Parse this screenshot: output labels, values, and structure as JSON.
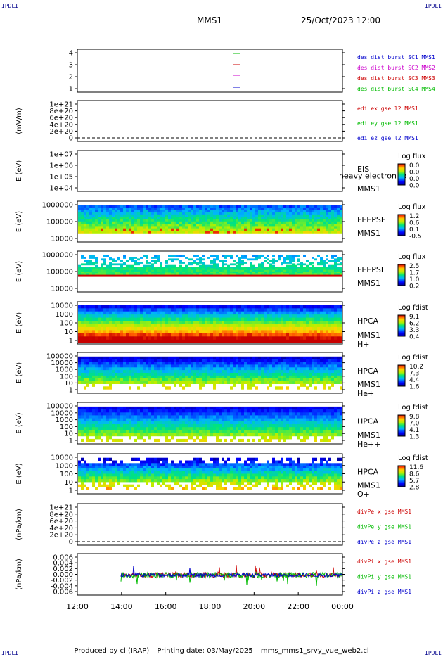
{
  "corner_label": "IPDLI",
  "header": {
    "mission": "MMS1",
    "date": "25/Oct/2023 12:00"
  },
  "footer": {
    "produced": "Produced by cl (IRAP)",
    "printing": "Printing date: 03/May/2025",
    "file": "mms_mms1_srvy_vue_web2.cl"
  },
  "x_ticks": [
    "12:00",
    "14:00",
    "16:00",
    "18:00",
    "20:00",
    "22:00",
    "00:00"
  ],
  "chart_data": [
    {
      "type": "line",
      "ylabel": "",
      "yticks": [
        "4",
        "3",
        "2",
        "1"
      ],
      "legend": [
        {
          "label": "des dist burst SC1 MMS1",
          "color": "#0000cc"
        },
        {
          "label": "des dist burst SC2 MMS2",
          "color": "#cc00cc"
        },
        {
          "label": "des dist burst SC3 MMS3",
          "color": "#cc0000"
        },
        {
          "label": "des dist burst SC4 MMS4",
          "color": "#00bb00"
        }
      ]
    },
    {
      "type": "line",
      "ylabel": "(mV/m)",
      "yticks": [
        "1e+21",
        "8e+20",
        "6e+20",
        "4e+20",
        "2e+20",
        "0"
      ],
      "legend": [
        {
          "label": "edi ex gse l2 MMS1",
          "color": "#cc0000"
        },
        {
          "label": "edi ey gse l2 MMS1",
          "color": "#00bb00"
        },
        {
          "label": "edi ez gse l2 MMS1",
          "color": "#0000cc"
        }
      ]
    },
    {
      "type": "heatmap",
      "ylabel": "E (eV)",
      "yticks": [
        "1e+07",
        "1e+06",
        "1e+05",
        "1e+04"
      ],
      "labels": [
        "EIS",
        "heavy electron to",
        "MMS1"
      ],
      "colorbar": {
        "title": "Log flux",
        "ticks": [
          "0.0",
          "0.0",
          "0.0",
          "0.0"
        ]
      }
    },
    {
      "type": "heatmap",
      "ylabel": "E (eV)",
      "yticks": [
        "1000000",
        "100000",
        "10000"
      ],
      "labels": [
        "FEEPSE",
        "MMS1"
      ],
      "colorbar": {
        "title": "Log flux",
        "ticks": [
          "1.2",
          "0.6",
          "0.1",
          "-0.5"
        ]
      }
    },
    {
      "type": "heatmap",
      "ylabel": "E (eV)",
      "yticks": [
        "1000000",
        "100000",
        "10000"
      ],
      "labels": [
        "FEEPSI",
        "MMS1"
      ],
      "colorbar": {
        "title": "Log flux",
        "ticks": [
          "2.5",
          "1.7",
          "1.0",
          "0.2"
        ]
      }
    },
    {
      "type": "heatmap",
      "ylabel": "E (eV)",
      "yticks": [
        "10000",
        "1000",
        "100",
        "10",
        "1"
      ],
      "labels": [
        "HPCA",
        "MMS1",
        "H+"
      ],
      "colorbar": {
        "title": "Log fdist",
        "ticks": [
          "9.1",
          "6.2",
          "3.3",
          "0.4"
        ]
      }
    },
    {
      "type": "heatmap",
      "ylabel": "E (eV)",
      "yticks": [
        "100000",
        "10000",
        "1000",
        "100",
        "10",
        "1"
      ],
      "labels": [
        "HPCA",
        "MMS1",
        "He+"
      ],
      "colorbar": {
        "title": "Log fdist",
        "ticks": [
          "10.2",
          "7.3",
          "4.4",
          "1.6"
        ]
      }
    },
    {
      "type": "heatmap",
      "ylabel": "E (eV)",
      "yticks": [
        "100000",
        "10000",
        "1000",
        "100",
        "10",
        "1"
      ],
      "labels": [
        "HPCA",
        "MMS1",
        "He++"
      ],
      "colorbar": {
        "title": "Log fdist",
        "ticks": [
          "9.8",
          "7.0",
          "4.1",
          "1.3"
        ]
      }
    },
    {
      "type": "heatmap",
      "ylabel": "E (eV)",
      "yticks": [
        "10000",
        "1000",
        "100",
        "10",
        "1"
      ],
      "labels": [
        "HPCA",
        "MMS1",
        "O+"
      ],
      "colorbar": {
        "title": "Log fdist",
        "ticks": [
          "11.6",
          "8.6",
          "5.7",
          "2.8"
        ]
      }
    },
    {
      "type": "line",
      "ylabel": "(nPa/km)",
      "yticks": [
        "1e+21",
        "8e+20",
        "6e+20",
        "4e+20",
        "2e+20",
        "0"
      ],
      "legend": [
        {
          "label": "divPe x gse MMS1",
          "color": "#cc0000"
        },
        {
          "label": "divPe y gse MMS1",
          "color": "#00bb00"
        },
        {
          "label": "divPe z gse MMS1",
          "color": "#0000cc"
        }
      ]
    },
    {
      "type": "line",
      "ylabel": "(nPa/km)",
      "yticks": [
        "0.006",
        "0.004",
        "0.002",
        "0.000",
        "-0.002",
        "-0.004",
        "-0.006"
      ],
      "ylim": [
        -0.007,
        0.007
      ],
      "legend": [
        {
          "label": "divPi x gse MMS1",
          "color": "#cc0000"
        },
        {
          "label": "divPi y gse MMS1",
          "color": "#00bb00"
        },
        {
          "label": "divPi z gse MMS1",
          "color": "#0000cc"
        }
      ]
    }
  ]
}
